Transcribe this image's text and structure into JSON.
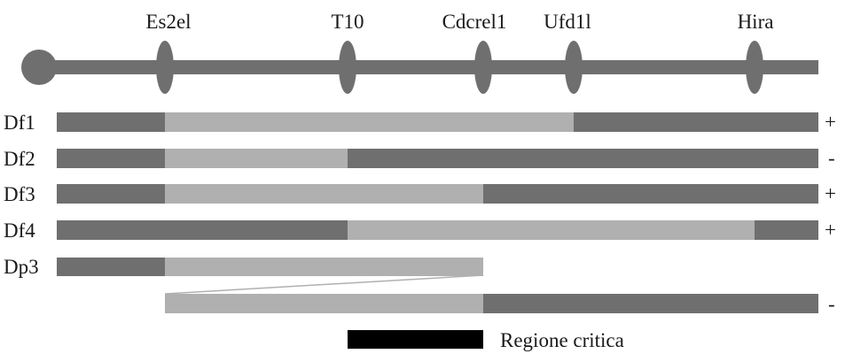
{
  "colors": {
    "dark": "#6f6f6f",
    "light": "#b0b0b0",
    "critical": "#000000",
    "text": "#1a1a1a"
  },
  "markers": [
    {
      "id": "es2el",
      "label": "Es2el"
    },
    {
      "id": "t10",
      "label": "T10"
    },
    {
      "id": "cdcrel1",
      "label": "Cdcrel1"
    },
    {
      "id": "ufd1l",
      "label": "Ufd1l"
    },
    {
      "id": "hira",
      "label": "Hira"
    }
  ],
  "rows": [
    {
      "label": "Df1",
      "sign": "+"
    },
    {
      "label": "Df2",
      "sign": "-"
    },
    {
      "label": "Df3",
      "sign": "+"
    },
    {
      "label": "Df4",
      "sign": "+"
    },
    {
      "label": "Dp3",
      "sign": ""
    },
    {
      "label": "",
      "sign": "-"
    }
  ],
  "legend": {
    "critical_label": "Regione critica"
  }
}
